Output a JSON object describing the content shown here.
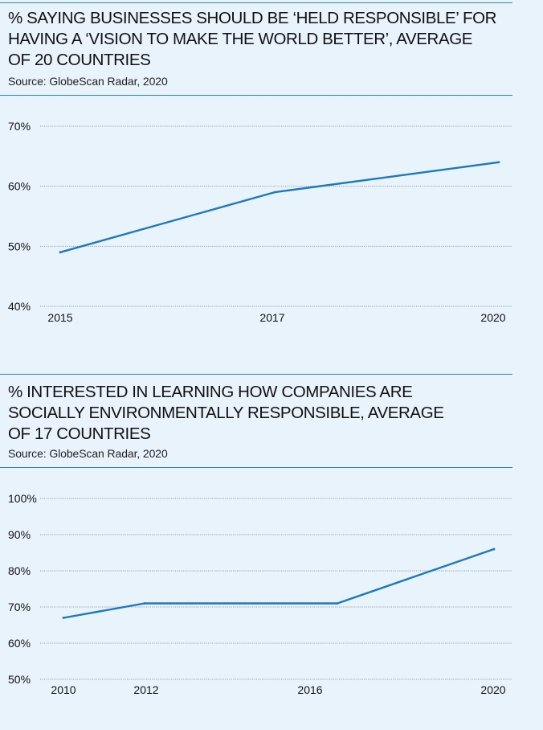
{
  "charts": [
    {
      "title_lines": [
        "% SAYING BUSINESSES SHOULD BE ‘HELD RESPONSIBLE’ FOR",
        "HAVING A ‘VISION TO MAKE THE WORLD BETTER’, AVERAGE",
        "OF 20 COUNTRIES"
      ],
      "source": "Source: GlobeScan Radar, 2020"
    },
    {
      "title_lines": [
        "% INTERESTED IN LEARNING HOW COMPANIES ARE",
        "SOCIALLY ENVIRONMENTALLY RESPONSIBLE, AVERAGE",
        "OF 17 COUNTRIES"
      ],
      "source": "Source: GlobeScan Radar, 2020"
    }
  ],
  "colors": {
    "line": "#1e78bb",
    "rule": "#2f84c0",
    "grid": "#9aa3ab",
    "background": "#e9f3fb"
  },
  "chart_data": [
    {
      "type": "line",
      "title": "% SAYING BUSINESSES SHOULD BE ‘HELD RESPONSIBLE’ FOR HAVING A ‘VISION TO MAKE THE WORLD BETTER’, AVERAGE OF 20 COUNTRIES",
      "x": [
        "2015",
        "2017",
        "2020"
      ],
      "series": [
        {
          "values": [
            49,
            59,
            64
          ]
        }
      ],
      "yticks": [
        "70%",
        "60%",
        "50%",
        "40%"
      ],
      "ytick_values": [
        70,
        60,
        50,
        40
      ],
      "ylim": [
        40,
        70
      ],
      "grid": true,
      "xlabel": "",
      "ylabel": ""
    },
    {
      "type": "line",
      "title": "% INTERESTED IN LEARNING HOW COMPANIES ARE SOCIALLY ENVIRONMENTALLY RESPONSIBLE, AVERAGE OF 17 COUNTRIES",
      "x": [
        "2010",
        "2012",
        "2016",
        "2020"
      ],
      "series": [
        {
          "values": [
            67,
            71,
            71,
            86
          ]
        }
      ],
      "yticks": [
        "100%",
        "90%",
        "80%",
        "70%",
        "60%",
        "50%"
      ],
      "ytick_values": [
        100,
        90,
        80,
        70,
        60,
        50
      ],
      "ylim": [
        50,
        100
      ],
      "grid": true,
      "xlabel": "",
      "ylabel": ""
    }
  ]
}
